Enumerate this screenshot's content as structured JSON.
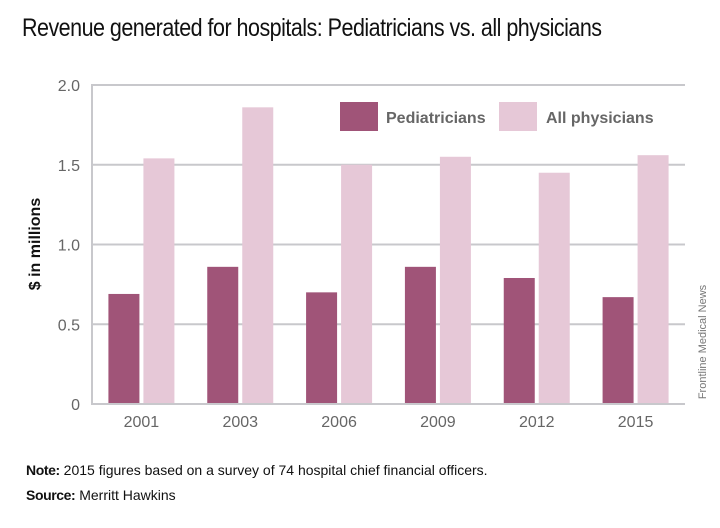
{
  "title": "Revenue generated for hospitals: Pediatricians vs. all physicians",
  "note_label": "Note:",
  "note_text": " 2015 figures based on a survey of 74 hospital chief financial officers.",
  "source_label": "Source:",
  "source_text": " Merritt Hawkins",
  "credit": "Frontline Medical News",
  "colors": {
    "pediatricians": "#A05478",
    "all_physicians": "#E6C8D7",
    "grid": "#C8C8CC",
    "axis_text": "#666666"
  },
  "chart_data": {
    "type": "bar",
    "title": "Revenue generated for hospitals: Pediatricians vs. all physicians",
    "xlabel": "",
    "ylabel": "$ in millions",
    "categories": [
      "2001",
      "2003",
      "2006",
      "2009",
      "2012",
      "2015"
    ],
    "series": [
      {
        "name": "Pediatricians",
        "values": [
          0.69,
          0.86,
          0.7,
          0.86,
          0.79,
          0.67
        ]
      },
      {
        "name": "All physicians",
        "values": [
          1.54,
          1.86,
          1.5,
          1.55,
          1.45,
          1.56
        ]
      }
    ],
    "ylim": [
      0,
      2.0
    ],
    "yticks": [
      0,
      0.5,
      1.0,
      1.5,
      2.0
    ],
    "ytick_labels": [
      "0",
      "0.5",
      "1.0",
      "1.5",
      "2.0"
    ],
    "grid": true,
    "legend_position": "top-right"
  }
}
